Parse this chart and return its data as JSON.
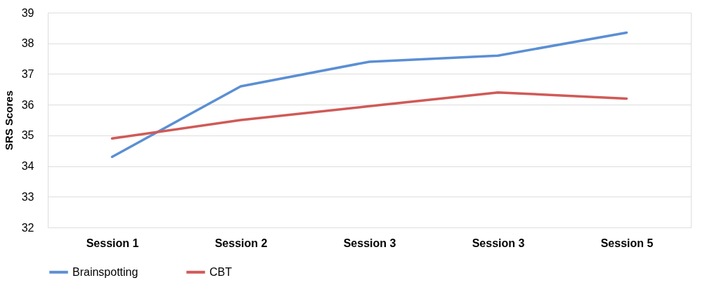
{
  "chart_data": {
    "type": "line",
    "ylabel": "SRS Scores",
    "categories": [
      "Session 1",
      "Session 2",
      "Session 3",
      "Session 3",
      "Session 5"
    ],
    "series": [
      {
        "name": "Brainspotting",
        "color": "#5b8fd4",
        "values": [
          34.3,
          36.6,
          37.4,
          37.6,
          38.35
        ]
      },
      {
        "name": "CBT",
        "color": "#d05a57",
        "values": [
          34.9,
          35.5,
          35.95,
          36.4,
          36.2
        ]
      }
    ],
    "ylim": [
      32,
      39
    ],
    "yticks": [
      32,
      33,
      34,
      35,
      36,
      37,
      38,
      39
    ],
    "grid": "y",
    "legend": "bottom",
    "marker": "none",
    "line_style": "solid"
  }
}
